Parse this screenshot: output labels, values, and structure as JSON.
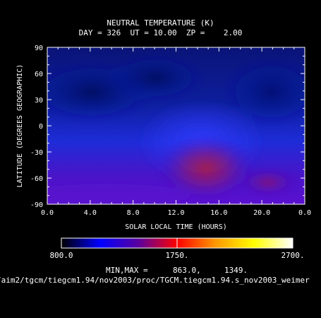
{
  "chart_data": {
    "type": "heatmap",
    "title": "NEUTRAL TEMPERATURE (K)",
    "subtitle": "DAY = 326  UT = 10.00  ZP =    2.00",
    "xlabel": "SOLAR LOCAL TIME (HOURS)",
    "ylabel": "LATITUDE (DEGREES GEOGRAPHIC)",
    "x_ticks": [
      "0.0",
      "4.0",
      "8.0",
      "12.0",
      "16.0",
      "20.0",
      "0.0"
    ],
    "y_ticks": [
      "-90",
      "-60",
      "-30",
      "0",
      "30",
      "60",
      "90"
    ],
    "xlim": [
      0,
      24
    ],
    "ylim": [
      -90,
      90
    ],
    "colorbar": {
      "range": [
        800.0,
        2700.0
      ],
      "tick_labels": [
        "800.0",
        "1750.",
        "2700."
      ],
      "colors": [
        "#000000",
        "#0000ff",
        "#5a00a0",
        "#ff0000",
        "#ff9900",
        "#ffff00",
        "#ffffff"
      ]
    }
  },
  "footer": {
    "minmax_label": "MIN,MAX =",
    "min_value": "863.0,",
    "max_value": "1349.",
    "file_path": "/aim2/tgcm/tiegcm1.94/nov2003/proc/TGCM.tiegcm1.94.s_nov2003_weimer"
  }
}
